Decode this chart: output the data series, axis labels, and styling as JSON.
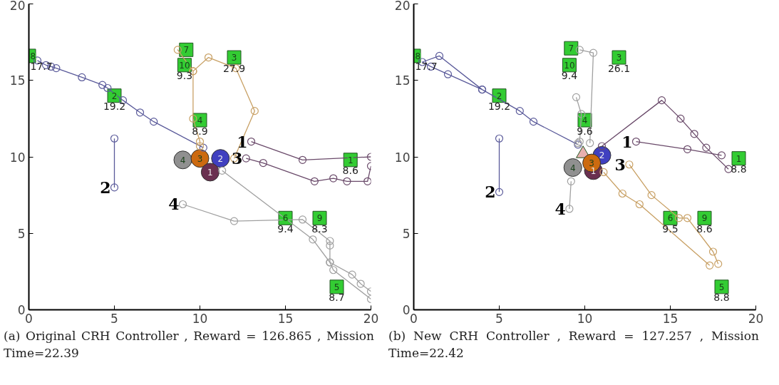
{
  "chart_data": [
    {
      "type": "line",
      "xlim": [
        0,
        20
      ],
      "ylim": [
        0,
        20
      ],
      "xticks": [
        0,
        5,
        10,
        15,
        20
      ],
      "yticks": [
        0,
        5,
        10,
        15,
        20
      ],
      "grid": false,
      "annotations": [
        "(a) Original CRH Controller , Reward = 126.865 , Mission Time=22.39",
        {
          "text": "8",
          "x": 0,
          "y": 16.6
        },
        {
          "text": "2",
          "x": 5,
          "y": 14
        },
        {
          "text": "7",
          "x": 9.2,
          "y": 17
        },
        {
          "text": "10",
          "x": 9.1,
          "y": 16
        },
        {
          "text": "3",
          "x": 12,
          "y": 16.5
        },
        {
          "text": "4",
          "x": 10,
          "y": 12.4
        },
        {
          "text": "1",
          "x": 18.8,
          "y": 9.8
        },
        {
          "text": "6",
          "x": 15,
          "y": 6
        },
        {
          "text": "9",
          "x": 17,
          "y": 6
        },
        {
          "text": "5",
          "x": 18,
          "y": 1.5
        },
        {
          "text": "17.7",
          "x": 0,
          "y": 16.6
        },
        {
          "text": "19.2",
          "x": 5,
          "y": 14
        },
        {
          "text": "9.3",
          "x": 9.1,
          "y": 16
        },
        {
          "text": "27.9",
          "x": 12,
          "y": 16.5
        },
        {
          "text": "8.9",
          "x": 10,
          "y": 12.4
        },
        {
          "text": "8.6",
          "x": 18.8,
          "y": 9.8
        },
        {
          "text": "9.4",
          "x": 15,
          "y": 6
        },
        {
          "text": "8.3",
          "x": 17,
          "y": 6
        },
        {
          "text": "8.7",
          "x": 18,
          "y": 1.5
        },
        {
          "text": "4",
          "x": 9,
          "y": 9.8
        },
        {
          "text": "3",
          "x": 10,
          "y": 9.9
        },
        {
          "text": "2",
          "x": 11.2,
          "y": 9.9
        },
        {
          "text": "1",
          "x": 10.6,
          "y": 9
        },
        {
          "text": "1",
          "x": 13,
          "y": 11
        },
        {
          "text": "2",
          "x": 5,
          "y": 8
        },
        {
          "text": "3",
          "x": 12.7,
          "y": 9.9
        },
        {
          "text": "4",
          "x": 9,
          "y": 6.9
        }
      ],
      "series": [
        {
          "marker": "circle",
          "color": "#5a5a9a",
          "x": [
            5,
            5
          ],
          "values": [
            8,
            11.2
          ]
        },
        {
          "marker": "circle",
          "color": "#5a5a9a",
          "x": [
            10.2,
            7.3,
            6.5,
            5.5,
            4.6,
            4.3,
            3.1,
            1.6,
            1.3,
            1,
            0.5
          ],
          "values": [
            10.6,
            12.3,
            12.9,
            13.7,
            14.5,
            14.7,
            15.2,
            15.8,
            15.9,
            16,
            16.3
          ]
        },
        {
          "marker": "circle",
          "color": "#6a4a6a",
          "x": [
            13,
            16,
            20
          ],
          "values": [
            11,
            9.8,
            10
          ]
        },
        {
          "marker": "circle",
          "color": "#6a4a6a",
          "x": [
            12.7,
            13.7,
            16.7,
            17.8,
            18.6,
            19.8,
            20
          ],
          "values": [
            9.9,
            9.6,
            8.4,
            8.6,
            8.4,
            8.4,
            9.4
          ]
        },
        {
          "marker": "circle",
          "color": "#c8a064",
          "x": [
            10,
            10,
            9.6,
            9.6,
            8.7,
            9.6,
            10.5,
            12.1,
            13.2,
            12
          ],
          "values": [
            10.7,
            11,
            12.5,
            15.6,
            17,
            15.6,
            16.5,
            15.8,
            13,
            9.9
          ]
        },
        {
          "marker": "circle",
          "color": "#a0a0a0",
          "x": [
            9,
            12,
            16,
            17.6,
            17.6,
            17.6,
            17.8,
            20
          ],
          "values": [
            6.9,
            5.8,
            5.9,
            4.5,
            4.2,
            3.1,
            2.6,
            0.7
          ]
        },
        {
          "marker": "circle",
          "color": "#a0a0a0",
          "x": [
            11.3,
            16.6,
            17.6,
            18.9,
            19.4,
            20
          ],
          "values": [
            9.1,
            4.6,
            3.1,
            2.3,
            1.7,
            1.2
          ]
        },
        {
          "type": "scatter",
          "marker": "square",
          "color": "#33cc33",
          "x": [
            0,
            5,
            9.2,
            9.1,
            12,
            10,
            18.8,
            15,
            17,
            18
          ],
          "values": [
            16.6,
            14,
            17,
            16,
            16.5,
            12.4,
            9.8,
            6,
            6,
            1.5
          ]
        },
        {
          "type": "bubble",
          "x": [
            9,
            10,
            11.2,
            10.6
          ],
          "values": [
            9.8,
            9.9,
            9.9,
            9
          ],
          "sizes": [
            1,
            1,
            1,
            1
          ],
          "colors": [
            "#909090",
            "#cc6a10",
            "#4040c0",
            "#6a3050"
          ]
        }
      ]
    },
    {
      "type": "line",
      "xlim": [
        0,
        20
      ],
      "ylim": [
        0,
        20
      ],
      "xticks": [
        0,
        5,
        10,
        15,
        20
      ],
      "yticks": [
        0,
        5,
        10,
        15,
        20
      ],
      "grid": false,
      "annotations": [
        "(b) New CRH Controller , Reward = 127.257 , Mission Time=22.42",
        {
          "text": "8",
          "x": 0,
          "y": 16.6
        },
        {
          "text": "2",
          "x": 5,
          "y": 14
        },
        {
          "text": "7",
          "x": 9.2,
          "y": 17.1
        },
        {
          "text": "10",
          "x": 9.1,
          "y": 16
        },
        {
          "text": "3",
          "x": 12,
          "y": 16.5
        },
        {
          "text": "4",
          "x": 10,
          "y": 12.4
        },
        {
          "text": "1",
          "x": 19,
          "y": 9.9
        },
        {
          "text": "6",
          "x": 15,
          "y": 6
        },
        {
          "text": "9",
          "x": 17,
          "y": 6
        },
        {
          "text": "5",
          "x": 18,
          "y": 1.5
        },
        {
          "text": "17.7",
          "x": 0,
          "y": 16.6
        },
        {
          "text": "19.2",
          "x": 5,
          "y": 14
        },
        {
          "text": "9.4",
          "x": 9.1,
          "y": 16
        },
        {
          "text": "26.1",
          "x": 12,
          "y": 16.5
        },
        {
          "text": "9.6",
          "x": 10,
          "y": 12.4
        },
        {
          "text": "8.8",
          "x": 19,
          "y": 9.9
        },
        {
          "text": "9.5",
          "x": 15,
          "y": 6
        },
        {
          "text": "8.6",
          "x": 17,
          "y": 6
        },
        {
          "text": "8.8",
          "x": 18,
          "y": 1.5
        },
        {
          "text": "4",
          "x": 9.3,
          "y": 9.3
        },
        {
          "text": "2",
          "x": 11,
          "y": 10.1
        },
        {
          "text": "1",
          "x": 10.5,
          "y": 9.1
        },
        {
          "text": "3",
          "x": 10.4,
          "y": 9.6
        },
        {
          "text": "1",
          "x": 13,
          "y": 11
        },
        {
          "text": "2",
          "x": 5,
          "y": 7.7
        },
        {
          "text": "3",
          "x": 12.6,
          "y": 9.5
        },
        {
          "text": "4",
          "x": 9.1,
          "y": 6.6
        }
      ],
      "series": [
        {
          "marker": "circle",
          "color": "#5a5a9a",
          "x": [
            5,
            5
          ],
          "values": [
            7.7,
            11.2
          ]
        },
        {
          "marker": "circle",
          "color": "#5a5a9a",
          "x": [
            9.6,
            7,
            6.2,
            4,
            2,
            1,
            0.5,
            1.5,
            4
          ],
          "values": [
            10.8,
            12.3,
            13,
            14.4,
            15.4,
            15.9,
            16.2,
            16.6,
            14.4
          ]
        },
        {
          "marker": "circle",
          "color": "#6a4a6a",
          "x": [
            13,
            16,
            18
          ],
          "values": [
            11,
            10.5,
            10.1
          ]
        },
        {
          "marker": "circle",
          "color": "#6a4a6a",
          "x": [
            11,
            14.5,
            15.6,
            16.4,
            17.1,
            18.4
          ],
          "values": [
            10.7,
            13.7,
            12.5,
            11.5,
            10.6,
            9.2
          ]
        },
        {
          "marker": "circle",
          "color": "#a0a0a0",
          "x": [
            9.1,
            9.2
          ],
          "values": [
            6.6,
            8.4
          ]
        },
        {
          "marker": "circle",
          "color": "#a0a0a0",
          "x": [
            9.5,
            9.8,
            9.7,
            9.6
          ],
          "values": [
            13.9,
            12.8,
            11,
            10.9
          ]
        },
        {
          "marker": "circle",
          "color": "#a0a0a0",
          "x": [
            9.7,
            10.5,
            10.3
          ],
          "values": [
            17,
            16.8,
            10.9
          ]
        },
        {
          "marker": "circle",
          "color": "#c8a064",
          "x": [
            12.6,
            13.9,
            15.5,
            16,
            17.5,
            17.8
          ],
          "values": [
            9.5,
            7.5,
            6,
            6,
            3.8,
            3
          ]
        },
        {
          "marker": "circle",
          "color": "#c8a064",
          "x": [
            11.1,
            12.2,
            13.2,
            17.3
          ],
          "values": [
            9,
            7.6,
            6.9,
            2.9
          ]
        },
        {
          "type": "scatter",
          "marker": "square",
          "color": "#33cc33",
          "x": [
            0,
            5,
            9.2,
            9.1,
            12,
            10,
            19,
            15,
            17,
            18
          ],
          "values": [
            16.6,
            14,
            17.1,
            16,
            16.5,
            12.4,
            9.9,
            6,
            6,
            1.5
          ]
        },
        {
          "type": "scatter",
          "marker": "triangle",
          "color": "#e8b0b0",
          "x": [
            9.9
          ],
          "values": [
            10.2
          ]
        },
        {
          "type": "bubble",
          "x": [
            9.3,
            11,
            10.5,
            10.4
          ],
          "values": [
            9.3,
            10.1,
            9.1,
            9.6
          ],
          "sizes": [
            1,
            1,
            1,
            1
          ],
          "colors": [
            "#909090",
            "#4040c0",
            "#6a3050",
            "#cc6a10"
          ]
        }
      ]
    }
  ]
}
